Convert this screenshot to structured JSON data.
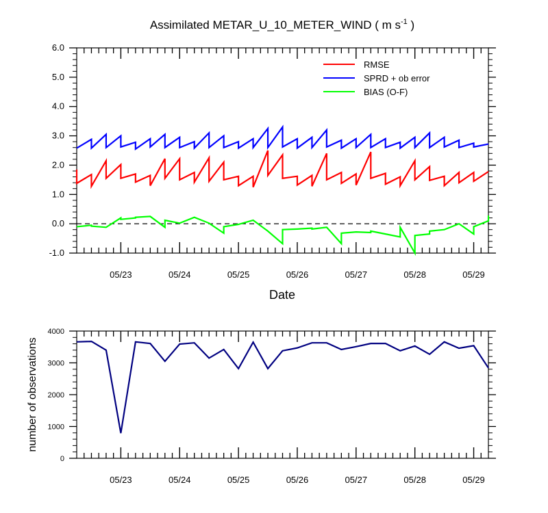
{
  "chart_data": [
    {
      "type": "line",
      "title": "Assimilated METAR_U_10_METER_WIND ( m s",
      "title_unit_exponent": "-1",
      "title_close": " )",
      "xlabel": "Date",
      "ylabel": "",
      "ylim": [
        -1.0,
        6.0
      ],
      "xlim": [
        0,
        28
      ],
      "y_ticks": [
        "-1.0",
        "0.0",
        "1.0",
        "2.0",
        "3.0",
        "4.0",
        "5.0",
        "6.0"
      ],
      "x_tick_labels": [
        "05/23",
        "05/24",
        "05/25",
        "05/26",
        "05/27",
        "05/28",
        "05/29"
      ],
      "x_tick_positions": [
        3,
        7,
        11,
        15,
        19,
        23,
        27
      ],
      "zero_line": true,
      "legend_position": "top-right",
      "series": [
        {
          "name": "RMSE",
          "color": "#ff0000",
          "points": [
            [
              0,
              1.85
            ],
            [
              0,
              1.38
            ],
            [
              1,
              1.68
            ],
            [
              1,
              1.28
            ],
            [
              2,
              2.15
            ],
            [
              2,
              1.55
            ],
            [
              3,
              2.02
            ],
            [
              3,
              1.55
            ],
            [
              4,
              1.7
            ],
            [
              4,
              1.42
            ],
            [
              5,
              1.65
            ],
            [
              5,
              1.3
            ],
            [
              6,
              2.22
            ],
            [
              6,
              1.55
            ],
            [
              7,
              2.22
            ],
            [
              7,
              1.5
            ],
            [
              8,
              1.75
            ],
            [
              8,
              1.42
            ],
            [
              9,
              2.25
            ],
            [
              9,
              1.45
            ],
            [
              10,
              2.1
            ],
            [
              10,
              1.5
            ],
            [
              11,
              1.62
            ],
            [
              11,
              1.3
            ],
            [
              12,
              1.62
            ],
            [
              12,
              1.25
            ],
            [
              13,
              2.5
            ],
            [
              13,
              1.65
            ],
            [
              14,
              2.35
            ],
            [
              14,
              1.55
            ],
            [
              15,
              1.62
            ],
            [
              15,
              1.32
            ],
            [
              16,
              1.65
            ],
            [
              16,
              1.28
            ],
            [
              17,
              2.4
            ],
            [
              17,
              1.5
            ],
            [
              18,
              1.75
            ],
            [
              18,
              1.38
            ],
            [
              19,
              1.7
            ],
            [
              19,
              1.32
            ],
            [
              20,
              2.45
            ],
            [
              20,
              1.55
            ],
            [
              21,
              1.72
            ],
            [
              21,
              1.35
            ],
            [
              22,
              1.6
            ],
            [
              22,
              1.3
            ],
            [
              23,
              2.15
            ],
            [
              23,
              1.5
            ],
            [
              24,
              1.95
            ],
            [
              24,
              1.48
            ],
            [
              25,
              1.62
            ],
            [
              25,
              1.3
            ],
            [
              26,
              1.75
            ],
            [
              26,
              1.4
            ],
            [
              27,
              1.75
            ],
            [
              27,
              1.45
            ],
            [
              28,
              1.78
            ]
          ]
        },
        {
          "name": "SPRD + ob error",
          "color": "#0000ff",
          "points": [
            [
              0,
              2.58
            ],
            [
              1,
              2.88
            ],
            [
              1,
              2.58
            ],
            [
              2,
              3.05
            ],
            [
              2,
              2.6
            ],
            [
              3,
              3.0
            ],
            [
              3,
              2.62
            ],
            [
              4,
              2.78
            ],
            [
              4,
              2.55
            ],
            [
              5,
              2.9
            ],
            [
              5,
              2.62
            ],
            [
              6,
              3.05
            ],
            [
              6,
              2.6
            ],
            [
              7,
              2.95
            ],
            [
              7,
              2.6
            ],
            [
              8,
              2.8
            ],
            [
              8,
              2.58
            ],
            [
              9,
              3.1
            ],
            [
              9,
              2.6
            ],
            [
              10,
              3.0
            ],
            [
              10,
              2.6
            ],
            [
              11,
              2.8
            ],
            [
              11,
              2.58
            ],
            [
              12,
              2.9
            ],
            [
              12,
              2.6
            ],
            [
              13,
              3.25
            ],
            [
              13,
              2.6
            ],
            [
              14,
              3.3
            ],
            [
              14,
              2.62
            ],
            [
              15,
              2.9
            ],
            [
              15,
              2.58
            ],
            [
              16,
              2.95
            ],
            [
              16,
              2.6
            ],
            [
              17,
              3.2
            ],
            [
              17,
              2.62
            ],
            [
              18,
              2.85
            ],
            [
              18,
              2.58
            ],
            [
              19,
              2.9
            ],
            [
              19,
              2.6
            ],
            [
              20,
              3.05
            ],
            [
              20,
              2.6
            ],
            [
              21,
              2.9
            ],
            [
              21,
              2.6
            ],
            [
              22,
              2.78
            ],
            [
              22,
              2.58
            ],
            [
              23,
              2.95
            ],
            [
              23,
              2.6
            ],
            [
              24,
              3.1
            ],
            [
              24,
              2.6
            ],
            [
              25,
              2.95
            ],
            [
              25,
              2.62
            ],
            [
              26,
              2.85
            ],
            [
              26,
              2.6
            ],
            [
              27,
              2.75
            ],
            [
              27,
              2.62
            ],
            [
              28,
              2.72
            ]
          ]
        },
        {
          "name": "BIAS (O-F)",
          "color": "#00ff00",
          "points": [
            [
              0,
              -0.1
            ],
            [
              1,
              -0.05
            ],
            [
              1,
              -0.08
            ],
            [
              2,
              -0.12
            ],
            [
              3,
              0.2
            ],
            [
              3,
              0.15
            ],
            [
              4,
              0.2
            ],
            [
              4,
              0.22
            ],
            [
              5,
              0.25
            ],
            [
              6,
              -0.12
            ],
            [
              6,
              0.12
            ],
            [
              7,
              0.02
            ],
            [
              8,
              0.22
            ],
            [
              9,
              0.02
            ],
            [
              10,
              -0.32
            ],
            [
              10,
              -0.1
            ],
            [
              11,
              -0.02
            ],
            [
              12,
              0.12
            ],
            [
              13,
              -0.25
            ],
            [
              14,
              -0.68
            ],
            [
              14,
              -0.2
            ],
            [
              15,
              -0.18
            ],
            [
              16,
              -0.15
            ],
            [
              16,
              -0.18
            ],
            [
              17,
              -0.12
            ],
            [
              18,
              -0.68
            ],
            [
              18,
              -0.32
            ],
            [
              19,
              -0.28
            ],
            [
              20,
              -0.3
            ],
            [
              20,
              -0.25
            ],
            [
              21,
              -0.35
            ],
            [
              22,
              -0.45
            ],
            [
              22,
              -0.12
            ],
            [
              23,
              -1.0
            ],
            [
              23,
              -0.4
            ],
            [
              24,
              -0.35
            ],
            [
              24,
              -0.25
            ],
            [
              25,
              -0.2
            ],
            [
              26,
              0.0
            ],
            [
              27,
              -0.35
            ],
            [
              27,
              -0.1
            ],
            [
              28,
              0.1
            ],
            [
              28,
              0.28
            ]
          ]
        }
      ]
    },
    {
      "type": "line",
      "title": "",
      "xlabel": "",
      "ylabel": "number of observations",
      "ylim": [
        0,
        4000
      ],
      "xlim": [
        0,
        28
      ],
      "y_ticks": [
        "0",
        "1000",
        "2000",
        "3000",
        "4000"
      ],
      "x_tick_labels": [
        "05/23",
        "05/24",
        "05/25",
        "05/26",
        "05/27",
        "05/28",
        "05/29"
      ],
      "x_tick_positions": [
        3,
        7,
        11,
        15,
        19,
        23,
        27
      ],
      "series": [
        {
          "name": "number of observations",
          "color": "#000080",
          "points": [
            [
              0,
              3660
            ],
            [
              1,
              3675
            ],
            [
              2,
              3400
            ],
            [
              3,
              790
            ],
            [
              4,
              3660
            ],
            [
              5,
              3610
            ],
            [
              6,
              3050
            ],
            [
              7,
              3590
            ],
            [
              8,
              3630
            ],
            [
              9,
              3150
            ],
            [
              10,
              3420
            ],
            [
              11,
              2820
            ],
            [
              12,
              3650
            ],
            [
              13,
              2820
            ],
            [
              14,
              3380
            ],
            [
              15,
              3470
            ],
            [
              16,
              3630
            ],
            [
              17,
              3630
            ],
            [
              18,
              3420
            ],
            [
              19,
              3510
            ],
            [
              20,
              3610
            ],
            [
              21,
              3610
            ],
            [
              22,
              3380
            ],
            [
              23,
              3530
            ],
            [
              24,
              3270
            ],
            [
              25,
              3660
            ],
            [
              26,
              3460
            ],
            [
              27,
              3540
            ],
            [
              28,
              2840
            ]
          ]
        }
      ]
    }
  ]
}
